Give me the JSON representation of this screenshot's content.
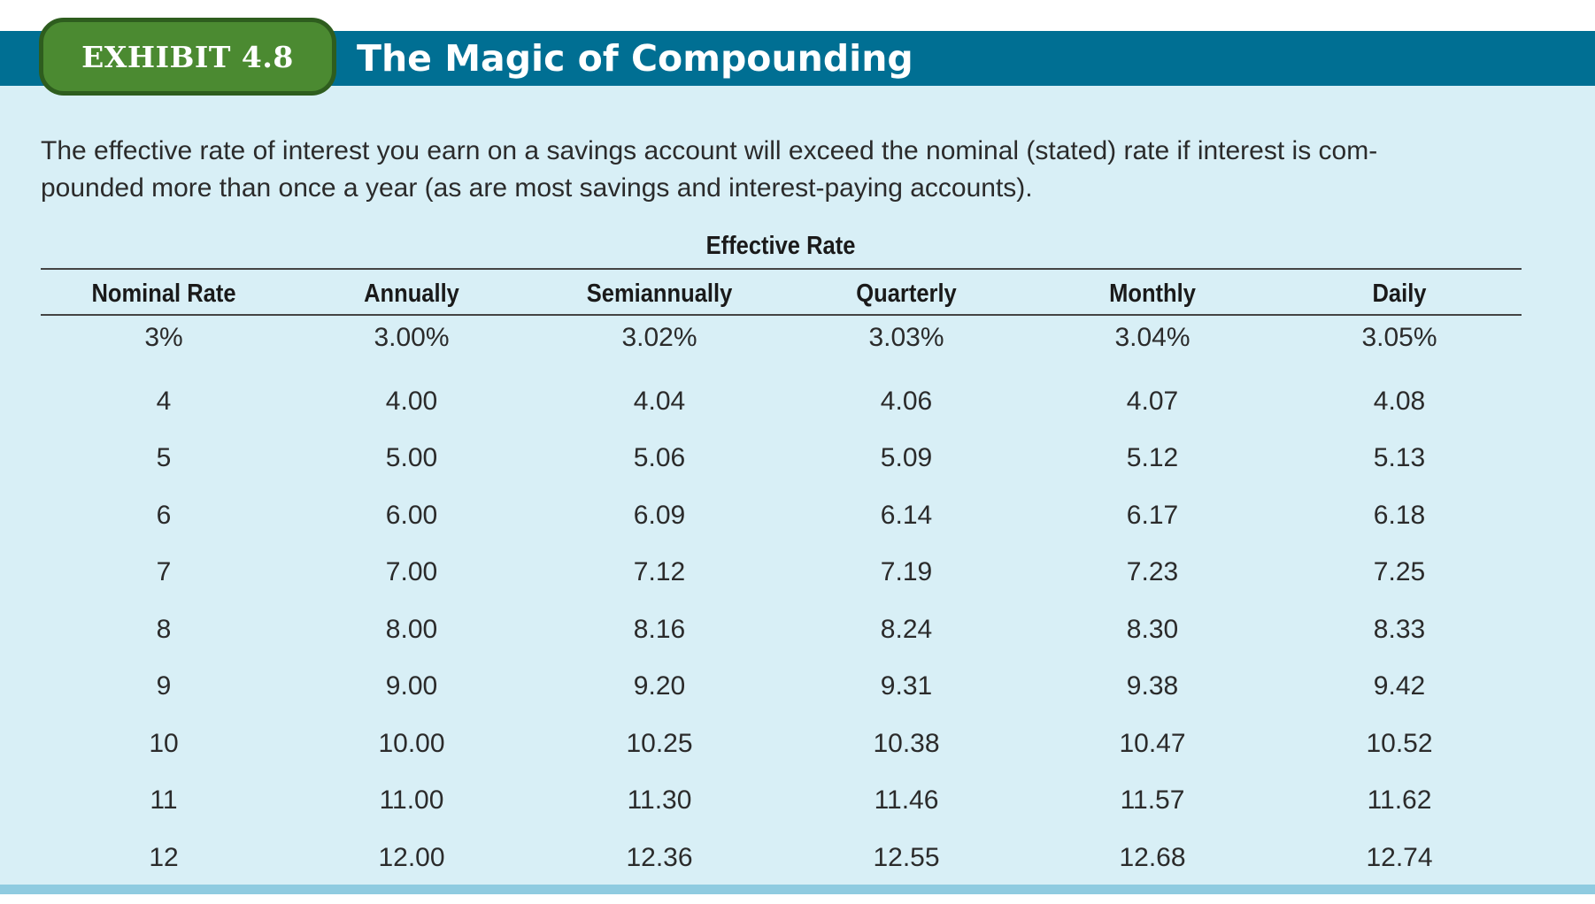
{
  "exhibit": {
    "label": "EXHIBIT 4.8",
    "title": "The Magic of Compounding"
  },
  "caption": "The effective rate of interest you earn on a savings account will exceed the nominal (stated) rate if interest is com-pounded more than once a year (as are most savings and interest-paying accounts).",
  "caption_lines": [
    "The effective rate of interest you earn on a savings account will exceed the nominal (stated) rate if interest is com-",
    "pounded more than once a year (as are most savings and interest-paying accounts)."
  ],
  "table": {
    "group_header": "Effective Rate",
    "columns": [
      "Nominal Rate",
      "Annually",
      "Semiannually",
      "Quarterly",
      "Monthly",
      "Daily"
    ],
    "rows": [
      [
        "3%",
        "3.00%",
        "3.02%",
        "3.03%",
        "3.04%",
        "3.05%"
      ],
      [
        "4",
        "4.00",
        "4.04",
        "4.06",
        "4.07",
        "4.08"
      ],
      [
        "5",
        "5.00",
        "5.06",
        "5.09",
        "5.12",
        "5.13"
      ],
      [
        "6",
        "6.00",
        "6.09",
        "6.14",
        "6.17",
        "6.18"
      ],
      [
        "7",
        "7.00",
        "7.12",
        "7.19",
        "7.23",
        "7.25"
      ],
      [
        "8",
        "8.00",
        "8.16",
        "8.24",
        "8.30",
        "8.33"
      ],
      [
        "9",
        "9.00",
        "9.20",
        "9.31",
        "9.38",
        "9.42"
      ],
      [
        "10",
        "10.00",
        "10.25",
        "10.38",
        "10.47",
        "10.52"
      ],
      [
        "11",
        "11.00",
        "11.30",
        "11.46",
        "11.57",
        "11.62"
      ],
      [
        "12",
        "12.00",
        "12.36",
        "12.55",
        "12.68",
        "12.74"
      ]
    ]
  },
  "colors": {
    "header_bar": "#006f93",
    "badge_fill": "#4b8a31",
    "badge_border": "#2e5d1e",
    "panel": "#d8eff6",
    "bottom_rule": "#8fcbe0"
  }
}
